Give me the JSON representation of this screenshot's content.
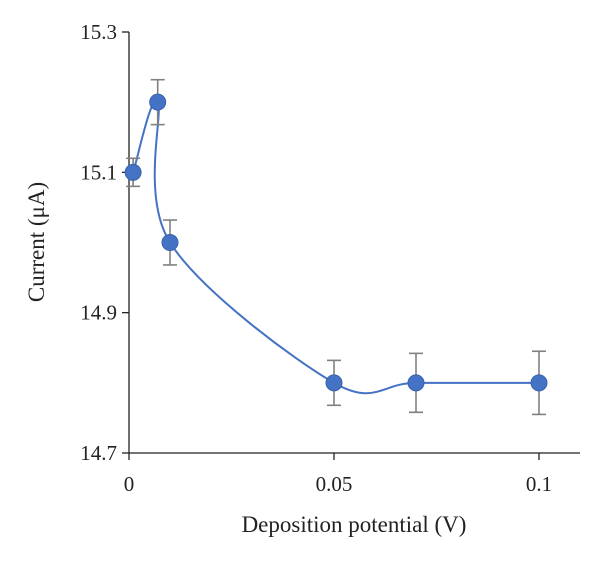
{
  "chart_data": {
    "type": "scatter",
    "title": "",
    "xlabel": "Deposition potential (V)",
    "ylabel": "Current (μA)",
    "xlim": [
      0,
      0.11
    ],
    "ylim": [
      14.7,
      15.3
    ],
    "x_ticks": [
      0,
      0.05,
      0.1
    ],
    "x_tick_labels": [
      "0",
      "0.05",
      "0.1"
    ],
    "y_ticks": [
      14.7,
      14.9,
      15.1,
      15.3
    ],
    "y_tick_labels": [
      "14.7",
      "14.9",
      "15.1",
      "15.3"
    ],
    "grid": false,
    "legend": "none",
    "smooth_line": true,
    "colors": {
      "series": "#4472C4",
      "error_bar": "#808080"
    },
    "series": [
      {
        "x": [
          0.001,
          0.007,
          0.01,
          0.05,
          0.07,
          0.1
        ],
        "y": [
          15.1,
          15.2,
          15.0,
          14.8,
          14.8,
          14.8
        ],
        "error": [
          0.02,
          0.032,
          0.032,
          0.032,
          0.042,
          0.045
        ]
      }
    ]
  }
}
